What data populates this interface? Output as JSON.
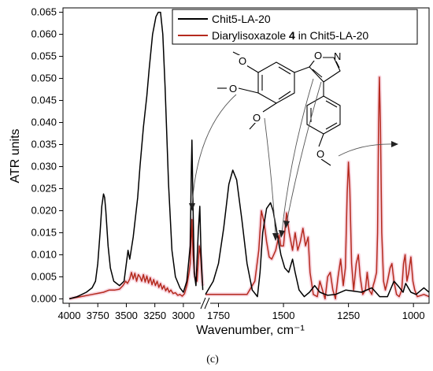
{
  "chart_data": {
    "type": "line",
    "xlabel": "Wavenumber, cm⁻¹",
    "ylabel": "ATR units",
    "caption": "(c)",
    "x_reversed": true,
    "axis_break": {
      "from": 2820,
      "to": 1800
    },
    "ylim": [
      -0.001,
      0.066
    ],
    "y_ticks": [
      "0.000",
      "0.005",
      "0.010",
      "0.015",
      "0.020",
      "0.025",
      "0.030",
      "0.035",
      "0.040",
      "0.045",
      "0.050",
      "0.055",
      "0.060",
      "0.065"
    ],
    "x_ticks_left": [
      "4000",
      "3750",
      "3500",
      "3250",
      "3000"
    ],
    "x_ticks_right": [
      "1750",
      "1500",
      "1250",
      "1000"
    ],
    "legend": {
      "placement": "top-right",
      "entries": [
        {
          "label": "Chit5-LA-20",
          "color": "#000000"
        },
        {
          "label_prefix": "Diarylisoxazole ",
          "label_bold": "4",
          "label_suffix": " in Chit5-LA-20",
          "color": "#b52a1e"
        }
      ]
    },
    "molecule_atoms": {
      "oxygen": "O",
      "nitrogen": "N"
    },
    "series": [
      {
        "name": "Chit5-LA-20",
        "color": "#000000",
        "points": [
          [
            4000,
            0.0
          ],
          [
            3930,
            0.0005
          ],
          [
            3850,
            0.0015
          ],
          [
            3800,
            0.0025
          ],
          [
            3770,
            0.004
          ],
          [
            3750,
            0.008
          ],
          [
            3730,
            0.015
          ],
          [
            3715,
            0.021
          ],
          [
            3700,
            0.0238
          ],
          [
            3690,
            0.023
          ],
          [
            3680,
            0.02
          ],
          [
            3660,
            0.012
          ],
          [
            3640,
            0.007
          ],
          [
            3610,
            0.004
          ],
          [
            3560,
            0.003
          ],
          [
            3520,
            0.004
          ],
          [
            3495,
            0.009
          ],
          [
            3485,
            0.011
          ],
          [
            3470,
            0.009
          ],
          [
            3440,
            0.014
          ],
          [
            3400,
            0.023
          ],
          [
            3380,
            0.03
          ],
          [
            3350,
            0.039
          ],
          [
            3320,
            0.046
          ],
          [
            3300,
            0.052
          ],
          [
            3270,
            0.06
          ],
          [
            3240,
            0.064
          ],
          [
            3220,
            0.065
          ],
          [
            3200,
            0.065
          ],
          [
            3180,
            0.06
          ],
          [
            3160,
            0.048
          ],
          [
            3130,
            0.026
          ],
          [
            3100,
            0.011
          ],
          [
            3070,
            0.005
          ],
          [
            3030,
            0.0025
          ],
          [
            3000,
            0.0015
          ],
          [
            2970,
            0.004
          ],
          [
            2940,
            0.012
          ],
          [
            2930,
            0.03
          ],
          [
            2925,
            0.036
          ],
          [
            2918,
            0.025
          ],
          [
            2905,
            0.006
          ],
          [
            2890,
            0.003
          ],
          [
            2870,
            0.015
          ],
          [
            2856,
            0.021
          ],
          [
            2845,
            0.01
          ],
          [
            2830,
            0.002
          ],
          null,
          [
            1800,
            0.001
          ],
          [
            1770,
            0.004
          ],
          [
            1750,
            0.008
          ],
          [
            1730,
            0.016
          ],
          [
            1710,
            0.026
          ],
          [
            1695,
            0.0292
          ],
          [
            1680,
            0.027
          ],
          [
            1660,
            0.018
          ],
          [
            1640,
            0.008
          ],
          [
            1620,
            0.002
          ],
          [
            1600,
            0.0005
          ],
          [
            1590,
            0.006
          ],
          [
            1580,
            0.015
          ],
          [
            1565,
            0.0205
          ],
          [
            1550,
            0.0218
          ],
          [
            1540,
            0.02
          ],
          [
            1525,
            0.015
          ],
          [
            1510,
            0.01
          ],
          [
            1495,
            0.007
          ],
          [
            1480,
            0.006
          ],
          [
            1465,
            0.009
          ],
          [
            1455,
            0.006
          ],
          [
            1440,
            0.002
          ],
          [
            1420,
            0.0005
          ],
          [
            1400,
            0.0015
          ],
          [
            1380,
            0.003
          ],
          [
            1360,
            0.0015
          ],
          [
            1330,
            0.0008
          ],
          [
            1300,
            0.001
          ],
          [
            1260,
            0.002
          ],
          [
            1200,
            0.0015
          ],
          [
            1160,
            0.0025
          ],
          [
            1130,
            0.0005
          ],
          [
            1100,
            0.0005
          ],
          [
            1075,
            0.004
          ],
          [
            1060,
            0.003
          ],
          [
            1040,
            0.0015
          ],
          [
            1030,
            0.0035
          ],
          [
            1010,
            0.0015
          ],
          [
            990,
            0.001
          ],
          [
            960,
            0.0025
          ],
          [
            940,
            0.0015
          ]
        ]
      },
      {
        "name": "Diarylisoxazole 4 in Chit5-LA-20",
        "color": "#b52a1e",
        "points": [
          [
            4000,
            0.0
          ],
          [
            3900,
            0.0005
          ],
          [
            3800,
            0.001
          ],
          [
            3700,
            0.0015
          ],
          [
            3650,
            0.002
          ],
          [
            3600,
            0.002
          ],
          [
            3560,
            0.0022
          ],
          [
            3530,
            0.003
          ],
          [
            3505,
            0.004
          ],
          [
            3490,
            0.0035
          ],
          [
            3470,
            0.0045
          ],
          [
            3455,
            0.006
          ],
          [
            3440,
            0.0045
          ],
          [
            3425,
            0.0058
          ],
          [
            3410,
            0.004
          ],
          [
            3395,
            0.0055
          ],
          [
            3380,
            0.005
          ],
          [
            3365,
            0.004
          ],
          [
            3350,
            0.0055
          ],
          [
            3335,
            0.0038
          ],
          [
            3320,
            0.0052
          ],
          [
            3305,
            0.0036
          ],
          [
            3290,
            0.0048
          ],
          [
            3275,
            0.0032
          ],
          [
            3260,
            0.0044
          ],
          [
            3245,
            0.003
          ],
          [
            3230,
            0.004
          ],
          [
            3215,
            0.0026
          ],
          [
            3200,
            0.0035
          ],
          [
            3185,
            0.0022
          ],
          [
            3170,
            0.003
          ],
          [
            3155,
            0.0018
          ],
          [
            3140,
            0.0025
          ],
          [
            3125,
            0.0015
          ],
          [
            3110,
            0.002
          ],
          [
            3090,
            0.0012
          ],
          [
            3070,
            0.0014
          ],
          [
            3050,
            0.0008
          ],
          [
            3030,
            0.001
          ],
          [
            3010,
            0.0006
          ],
          [
            2990,
            0.0012
          ],
          [
            2970,
            0.003
          ],
          [
            2950,
            0.006
          ],
          [
            2940,
            0.008
          ],
          [
            2925,
            0.018
          ],
          [
            2915,
            0.01
          ],
          [
            2900,
            0.005
          ],
          [
            2880,
            0.004
          ],
          [
            2860,
            0.012
          ],
          [
            2850,
            0.01
          ],
          [
            2835,
            0.004
          ],
          [
            2830,
            0.003
          ],
          null,
          [
            1800,
            0.001
          ],
          [
            1700,
            0.001
          ],
          [
            1640,
            0.001
          ],
          [
            1610,
            0.004
          ],
          [
            1595,
            0.011
          ],
          [
            1585,
            0.02
          ],
          [
            1575,
            0.0175
          ],
          [
            1565,
            0.013
          ],
          [
            1555,
            0.0095
          ],
          [
            1545,
            0.009
          ],
          [
            1530,
            0.011
          ],
          [
            1517,
            0.0145
          ],
          [
            1510,
            0.012
          ],
          [
            1500,
            0.012
          ],
          [
            1488,
            0.0195
          ],
          [
            1478,
            0.015
          ],
          [
            1465,
            0.011
          ],
          [
            1455,
            0.015
          ],
          [
            1445,
            0.011
          ],
          [
            1435,
            0.013
          ],
          [
            1425,
            0.016
          ],
          [
            1415,
            0.012
          ],
          [
            1405,
            0.014
          ],
          [
            1398,
            0.006
          ],
          [
            1385,
            0.001
          ],
          [
            1370,
            0.0005
          ],
          [
            1360,
            0.004
          ],
          [
            1350,
            0.002
          ],
          [
            1340,
            0.0
          ],
          [
            1330,
            0.005
          ],
          [
            1320,
            0.006
          ],
          [
            1310,
            0.002
          ],
          [
            1300,
            0.0
          ],
          [
            1290,
            0.005
          ],
          [
            1280,
            0.009
          ],
          [
            1270,
            0.003
          ],
          [
            1262,
            0.007
          ],
          [
            1255,
            0.024
          ],
          [
            1250,
            0.031
          ],
          [
            1245,
            0.025
          ],
          [
            1238,
            0.008
          ],
          [
            1230,
            0.002
          ],
          [
            1220,
            0.008
          ],
          [
            1212,
            0.01
          ],
          [
            1205,
            0.005
          ],
          [
            1195,
            0.001
          ],
          [
            1185,
            0.002
          ],
          [
            1178,
            0.006
          ],
          [
            1170,
            0.002
          ],
          [
            1160,
            0.001
          ],
          [
            1155,
            0.003
          ],
          [
            1150,
            0.004
          ],
          [
            1142,
            0.006
          ],
          [
            1138,
            0.015
          ],
          [
            1134,
            0.04
          ],
          [
            1131,
            0.0503
          ],
          [
            1127,
            0.04
          ],
          [
            1122,
            0.015
          ],
          [
            1115,
            0.004
          ],
          [
            1108,
            0.002
          ],
          [
            1100,
            0.004
          ],
          [
            1090,
            0.007
          ],
          [
            1083,
            0.008
          ],
          [
            1075,
            0.004
          ],
          [
            1065,
            0.001
          ],
          [
            1055,
            0.0005
          ],
          [
            1045,
            0.002
          ],
          [
            1038,
            0.008
          ],
          [
            1032,
            0.01
          ],
          [
            1025,
            0.004
          ],
          [
            1018,
            0.006
          ],
          [
            1010,
            0.0095
          ],
          [
            1002,
            0.004
          ],
          [
            995,
            0.002
          ],
          [
            985,
            0.0005
          ],
          [
            960,
            0.001
          ],
          [
            940,
            0.0005
          ]
        ]
      }
    ]
  }
}
